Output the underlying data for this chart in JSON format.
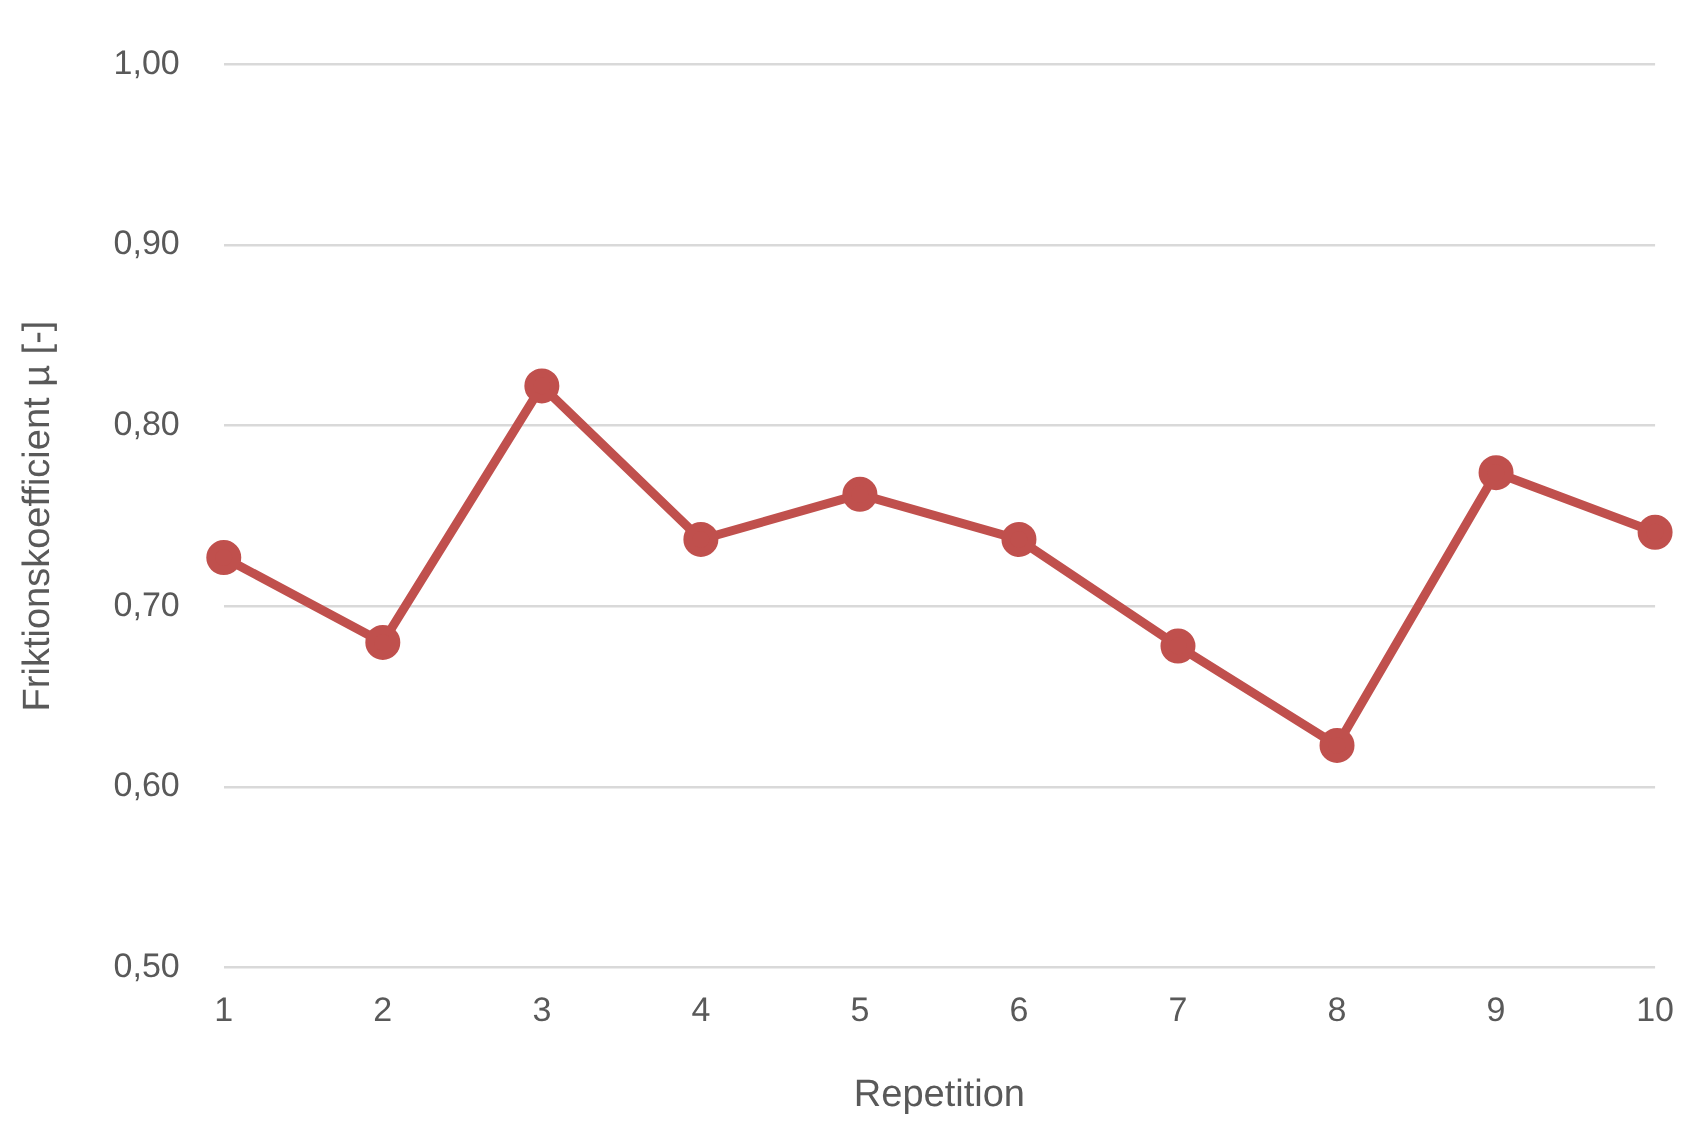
{
  "chart_data": {
    "type": "line",
    "xlabel": "Repetition",
    "ylabel": "Friktionskoefficient µ [-]",
    "categories": [
      "1",
      "2",
      "3",
      "4",
      "5",
      "6",
      "7",
      "8",
      "9",
      "10"
    ],
    "series": [
      {
        "color": "#c0504d",
        "values": [
          0.727,
          0.68,
          0.822,
          0.737,
          0.762,
          0.737,
          0.678,
          0.623,
          0.774,
          0.741
        ]
      }
    ],
    "ylim": [
      0.5,
      1.0
    ],
    "yticks": [
      {
        "value": 0.5,
        "label": "0,50"
      },
      {
        "value": 0.6,
        "label": "0,60"
      },
      {
        "value": 0.7,
        "label": "0,70"
      },
      {
        "value": 0.8,
        "label": "0,80"
      },
      {
        "value": 0.9,
        "label": "0,90"
      },
      {
        "value": 1.0,
        "label": "1,00"
      }
    ],
    "grid": "y",
    "marker": "circle",
    "line_style": "solid",
    "legend": false
  }
}
